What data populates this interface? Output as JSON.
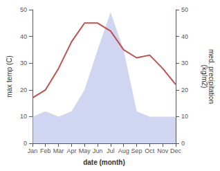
{
  "chart_data": {
    "type": "line",
    "xlabel": "date (month)",
    "ylabel": "max temp (C)",
    "y2label": "med. precipitation\n(kg/m2)",
    "categories": [
      "Jan",
      "Feb",
      "Mar",
      "Apr",
      "May",
      "Jun",
      "Jul",
      "Aug",
      "Sep",
      "Oct",
      "Nov",
      "Dec"
    ],
    "series": [
      {
        "type": "area",
        "axis": "y2",
        "color": "#aab4e8",
        "values": [
          10,
          12,
          10,
          12,
          20,
          35,
          49,
          35,
          12,
          10,
          10,
          10
        ]
      },
      {
        "type": "line",
        "color": "#c0504d",
        "values": [
          17,
          20,
          28,
          38,
          45,
          45,
          42,
          35,
          32,
          33,
          28,
          22
        ]
      }
    ],
    "ylim": [
      0,
      50
    ],
    "yticks": [
      0,
      10,
      20,
      30,
      40,
      50
    ],
    "y2lim": [
      0,
      50
    ],
    "y2ticks": [
      0,
      10,
      20,
      30,
      40,
      50
    ],
    "grid": false
  }
}
